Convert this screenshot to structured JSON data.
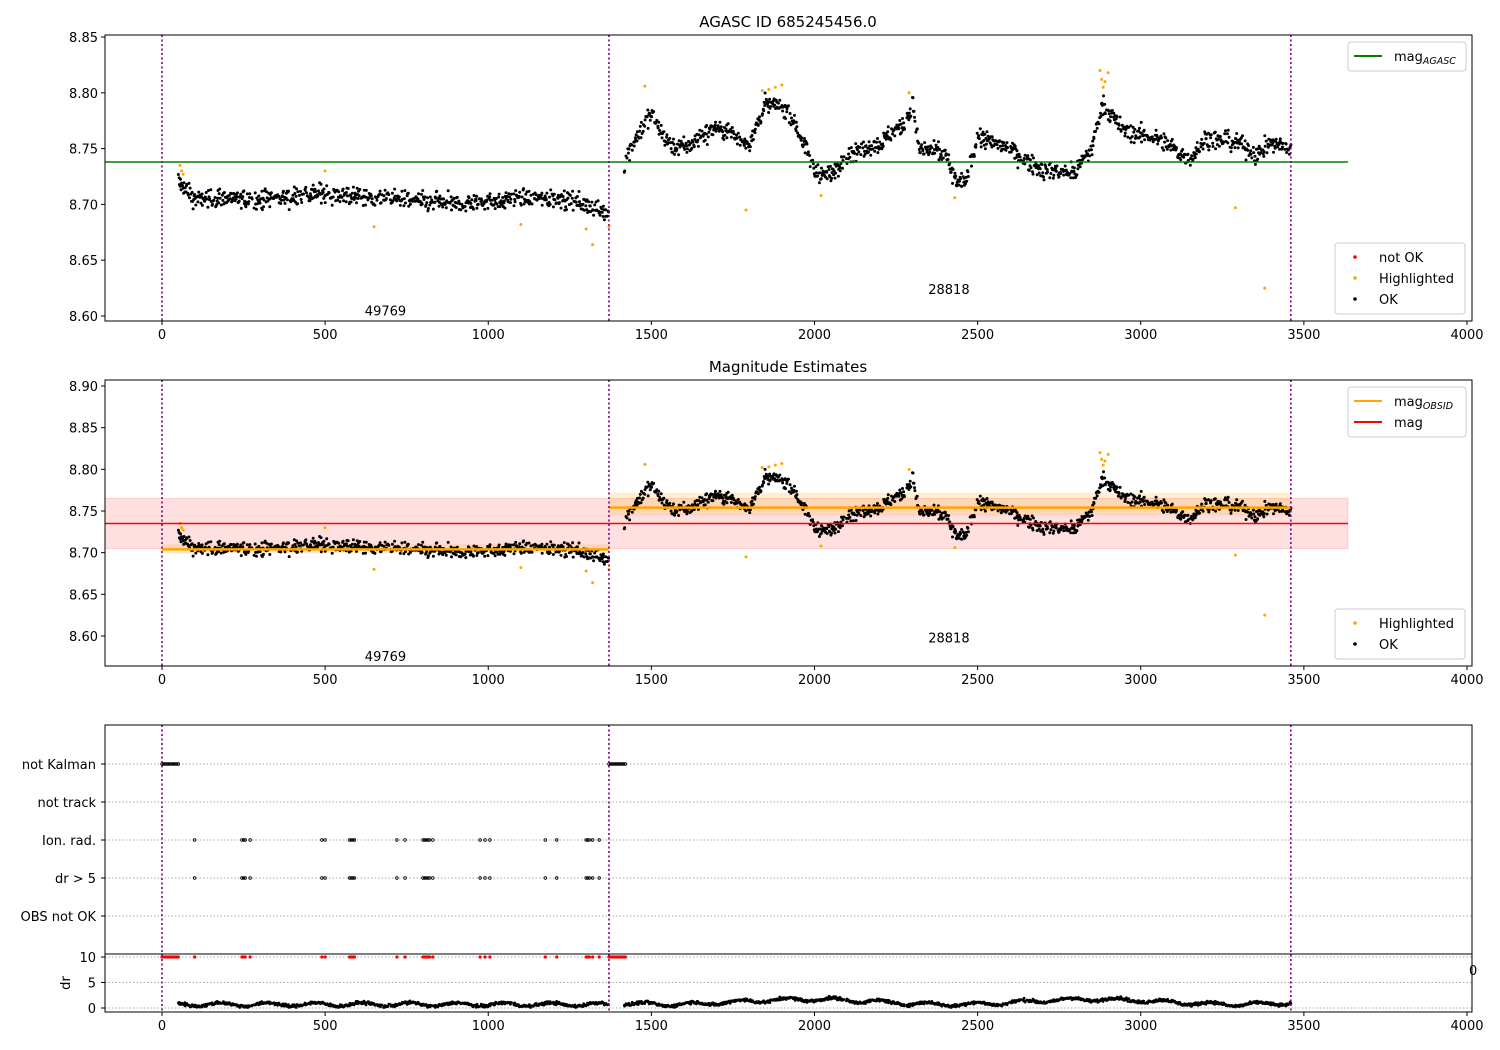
{
  "chart_data": [
    {
      "type": "scatter",
      "title": "AGASC ID 685245456.0",
      "xlim": [
        -175,
        4015
      ],
      "ylim": [
        8.595,
        8.855
      ],
      "xticks": [
        "0",
        "500",
        "1000",
        "1500",
        "2000",
        "2500",
        "3000",
        "3500",
        "4000"
      ],
      "xtick_values": [
        0,
        500,
        1000,
        1500,
        2000,
        2500,
        3000,
        3500,
        4000
      ],
      "yticks": [
        "8.60",
        "8.65",
        "8.70",
        "8.75",
        "8.80",
        "8.85"
      ],
      "ytick_values": [
        8.6,
        8.65,
        8.7,
        8.75,
        8.8,
        8.85
      ],
      "legend_upper": {
        "position": "top-right",
        "entries": [
          {
            "label": "mag",
            "sub": "AGASC",
            "color": "#008000"
          }
        ]
      },
      "legend_lower": {
        "position": "bottom-right",
        "entries": [
          {
            "label": "not OK",
            "color": "#ff0000"
          },
          {
            "label": "Highlighted",
            "color": "#ffa500"
          },
          {
            "label": "OK",
            "color": "#000000"
          }
        ]
      },
      "mag_agasc": 8.738,
      "obsid_labels": [
        {
          "text": "49769",
          "x": 685,
          "y": 8.605
        },
        {
          "text": "28818",
          "x": 2412,
          "y": 8.624
        }
      ]
    },
    {
      "type": "scatter",
      "title": "Magnitude Estimates",
      "xlim": [
        -175,
        4015
      ],
      "ylim": [
        8.563,
        8.905
      ],
      "xticks": [
        "0",
        "500",
        "1000",
        "1500",
        "2000",
        "2500",
        "3000",
        "3500",
        "4000"
      ],
      "xtick_values": [
        0,
        500,
        1000,
        1500,
        2000,
        2500,
        3000,
        3500,
        4000
      ],
      "yticks": [
        "8.60",
        "8.65",
        "8.70",
        "8.75",
        "8.80",
        "8.85",
        "8.90"
      ],
      "ytick_values": [
        8.6,
        8.65,
        8.7,
        8.75,
        8.8,
        8.85,
        8.9
      ],
      "legend_upper": {
        "position": "top-right",
        "entries": [
          {
            "label": "mag",
            "sub": "OBSID",
            "color": "#ffa500"
          },
          {
            "label": "mag",
            "sub": "",
            "color": "#ff0000"
          }
        ]
      },
      "legend_lower": {
        "position": "bottom-right",
        "entries": [
          {
            "label": "Highlighted",
            "color": "#ffa500"
          },
          {
            "label": "OK",
            "color": "#000000"
          }
        ]
      },
      "mag": {
        "value": 8.735,
        "band": [
          8.705,
          8.765
        ]
      },
      "mag_obsid": [
        {
          "obsid": "49769",
          "x": [
            0,
            1370
          ],
          "value": 8.704,
          "band": [
            8.699,
            8.71
          ]
        },
        {
          "obsid": "28818",
          "x": [
            1370,
            3460
          ],
          "value": 8.754,
          "band": [
            8.745,
            8.772
          ]
        }
      ],
      "obsid_labels": [
        {
          "text": "49769",
          "x": 685,
          "y": 8.576
        },
        {
          "text": "28818",
          "x": 2412,
          "y": 8.598
        }
      ]
    },
    {
      "type": "scatter",
      "title": "",
      "flag_categories": [
        "not Kalman",
        "not track",
        "Ion. rad.",
        "dr > 5",
        "OBS not OK"
      ],
      "dr_ylabel": "dr",
      "dr_yticks": [
        "10",
        "5",
        "0"
      ],
      "dr_ytick_values": [
        10,
        5,
        0
      ],
      "xticks": [
        "0",
        "500",
        "1000",
        "1500",
        "2000",
        "2500",
        "3000",
        "3500",
        "4000"
      ],
      "xtick_values": [
        0,
        500,
        1000,
        1500,
        2000,
        2500,
        3000,
        3500,
        4000
      ],
      "clipped_label": "0",
      "not_kalman_ranges": [
        [
          0,
          50
        ],
        [
          1370,
          1420
        ]
      ],
      "ion_rad_x": [
        100,
        245,
        250,
        255,
        270,
        490,
        500,
        575,
        580,
        585,
        590,
        720,
        745,
        800,
        805,
        810,
        815,
        820,
        830,
        975,
        990,
        1005,
        1175,
        1210,
        1300,
        1305,
        1310,
        1320,
        1340
      ],
      "dr_gt5_x": [
        100,
        245,
        250,
        255,
        270,
        490,
        500,
        575,
        580,
        585,
        590,
        720,
        745,
        800,
        805,
        810,
        815,
        820,
        830,
        975,
        990,
        1005,
        1175,
        1210,
        1300,
        1305,
        1310,
        1320,
        1340
      ],
      "dr_level_first_obs": 0.7,
      "dr_level_second_obs": 1.2
    }
  ],
  "series": {
    "obs_boundaries": [
      0,
      1370,
      3460
    ],
    "ok_trend_knots": [
      [
        50,
        8.72
      ],
      [
        100,
        8.705
      ],
      [
        300,
        8.705
      ],
      [
        500,
        8.71
      ],
      [
        700,
        8.705
      ],
      [
        900,
        8.7
      ],
      [
        1100,
        8.705
      ],
      [
        1250,
        8.705
      ],
      [
        1330,
        8.695
      ],
      [
        1370,
        8.69
      ],
      [
        1420,
        8.74
      ],
      [
        1450,
        8.76
      ],
      [
        1500,
        8.78
      ],
      [
        1550,
        8.755
      ],
      [
        1600,
        8.75
      ],
      [
        1700,
        8.77
      ],
      [
        1800,
        8.755
      ],
      [
        1850,
        8.79
      ],
      [
        1920,
        8.785
      ],
      [
        1960,
        8.76
      ],
      [
        2000,
        8.73
      ],
      [
        2050,
        8.725
      ],
      [
        2100,
        8.745
      ],
      [
        2200,
        8.755
      ],
      [
        2280,
        8.775
      ],
      [
        2300,
        8.79
      ],
      [
        2320,
        8.75
      ],
      [
        2400,
        8.745
      ],
      [
        2430,
        8.72
      ],
      [
        2460,
        8.72
      ],
      [
        2500,
        8.76
      ],
      [
        2600,
        8.75
      ],
      [
        2700,
        8.73
      ],
      [
        2800,
        8.73
      ],
      [
        2850,
        8.75
      ],
      [
        2880,
        8.79
      ],
      [
        2950,
        8.765
      ],
      [
        3050,
        8.76
      ],
      [
        3100,
        8.75
      ],
      [
        3150,
        8.74
      ],
      [
        3200,
        8.76
      ],
      [
        3300,
        8.755
      ],
      [
        3350,
        8.745
      ],
      [
        3400,
        8.755
      ],
      [
        3460,
        8.75
      ]
    ],
    "highlighted": [
      [
        55,
        8.735
      ],
      [
        60,
        8.73
      ],
      [
        65,
        8.727
      ],
      [
        500,
        8.73
      ],
      [
        650,
        8.68
      ],
      [
        1100,
        8.682
      ],
      [
        1300,
        8.678
      ],
      [
        1320,
        8.664
      ],
      [
        1370,
        8.68
      ],
      [
        1480,
        8.806
      ],
      [
        1790,
        8.695
      ],
      [
        1840,
        8.802
      ],
      [
        1860,
        8.803
      ],
      [
        1880,
        8.805
      ],
      [
        1900,
        8.807
      ],
      [
        2020,
        8.708
      ],
      [
        2290,
        8.8
      ],
      [
        2430,
        8.706
      ],
      [
        2875,
        8.82
      ],
      [
        2880,
        8.812
      ],
      [
        2885,
        8.805
      ],
      [
        2890,
        8.81
      ],
      [
        2900,
        8.818
      ],
      [
        3290,
        8.697
      ],
      [
        3380,
        8.625
      ]
    ]
  },
  "colors": {
    "ok": "#000000",
    "highlighted": "#ffa500",
    "not_ok": "#ff0000",
    "agasc": "#008000",
    "mag": "#ff0000",
    "obsid": "#ffa500",
    "boundary": "#800080"
  }
}
